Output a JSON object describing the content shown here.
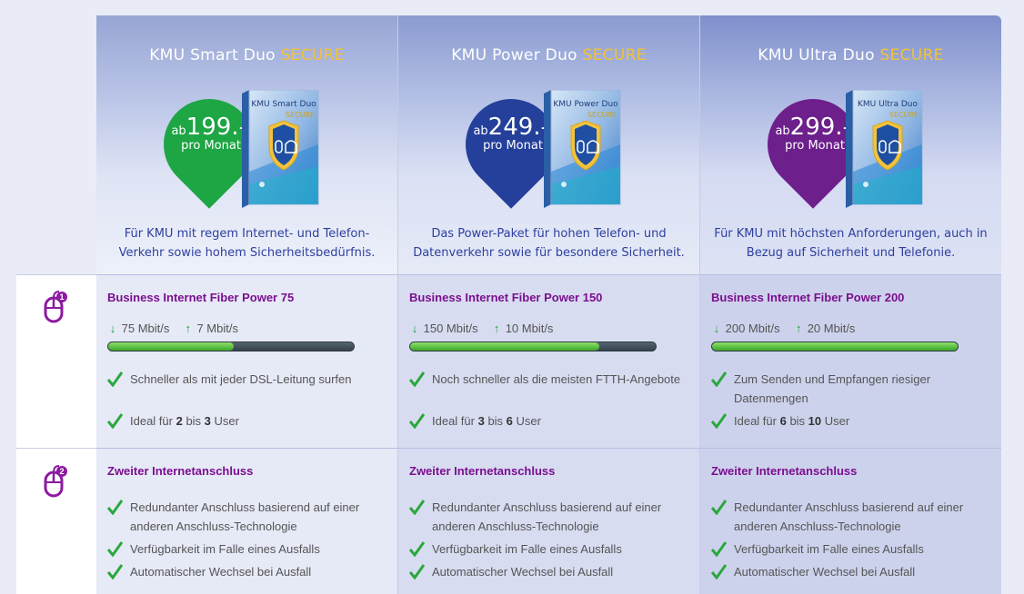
{
  "plans": [
    {
      "name": "KMU Smart Duo",
      "secure": "SECURE",
      "price_prefix": "ab",
      "price": "199.–",
      "price_unit": "pro Monat",
      "badge_color": "#1ea544",
      "box_name": "KMU Smart Duo",
      "box_secure": "SECURE",
      "description": "Für KMU mit regem Internet- und Telefon-Verkehr sowie hohem Sicherheitsbedürfnis.",
      "internet_title": "Business Internet Fiber Power 75",
      "down": "75 Mbit/s",
      "up": "7 Mbit/s",
      "speed_fill": 0.51,
      "features": [
        {
          "text": "Schneller als mit jeder DSL-Leitung surfen"
        },
        {
          "pre": "Ideal für ",
          "a": "2",
          "mid": " bis ",
          "b": "3",
          "post": " User"
        }
      ],
      "second_title": "Zweiter Internetanschluss",
      "second_features": [
        "Redundanter Anschluss basierend auf einer anderen Anschluss-Technologie",
        "Verfügbarkeit im Falle eines Ausfalls",
        "Automatischer Wechsel bei Ausfall"
      ]
    },
    {
      "name": "KMU Power Duo",
      "secure": "SECURE",
      "price_prefix": "ab",
      "price": "249.–",
      "price_unit": "pro Monat",
      "badge_color": "#24409a",
      "box_name": "KMU Power Duo",
      "box_secure": "SECURE",
      "description": "Das Power-Paket für hohen Telefon- und Datenverkehr sowie für besondere Sicherheit.",
      "internet_title": "Business Internet Fiber Power 150",
      "down": "150 Mbit/s",
      "up": "10 Mbit/s",
      "speed_fill": 0.77,
      "features": [
        {
          "text": "Noch schneller als die meisten FTTH-Angebote"
        },
        {
          "pre": "Ideal für ",
          "a": "3",
          "mid": " bis ",
          "b": "6",
          "post": " User"
        }
      ],
      "second_title": "Zweiter Internetanschluss",
      "second_features": [
        "Redundanter Anschluss basierend auf einer anderen Anschluss-Technologie",
        "Verfügbarkeit im Falle eines Ausfalls",
        "Automatischer Wechsel bei Ausfall"
      ]
    },
    {
      "name": "KMU Ultra Duo",
      "secure": "SECURE",
      "price_prefix": "ab",
      "price": "299.–",
      "price_unit": "pro Monat",
      "badge_color": "#6d1f8c",
      "box_name": "KMU Ultra Duo",
      "box_secure": "SECURE",
      "description": "Für KMU mit höchsten Anforderungen, auch in Bezug auf Sicherheit und Telefonie.",
      "internet_title": "Business Internet Fiber Power 200",
      "down": "200 Mbit/s",
      "up": "20 Mbit/s",
      "speed_fill": 1.0,
      "features": [
        {
          "text": "Zum Senden und Empfangen riesiger Datenmengen"
        },
        {
          "pre": "Ideal für ",
          "a": "6",
          "mid": " bis ",
          "b": "10",
          "post": " User"
        }
      ],
      "second_title": "Zweiter Internetanschluss",
      "second_features": [
        "Redundanter Anschluss basierend auf einer anderen Anschluss-Technologie",
        "Verfügbarkeit im Falle eines Ausfalls",
        "Automatischer Wechsel bei Ausfall"
      ]
    }
  ],
  "row_icons": [
    {
      "icon": "mouse-1-icon",
      "number": "1"
    },
    {
      "icon": "mouse-2-icon",
      "number": "2"
    }
  ],
  "colors": {
    "accent_purple": "#7a0f8f",
    "secure_yellow": "#f2c236",
    "check_green": "#23a33c",
    "description_blue": "#2d3f9e"
  }
}
